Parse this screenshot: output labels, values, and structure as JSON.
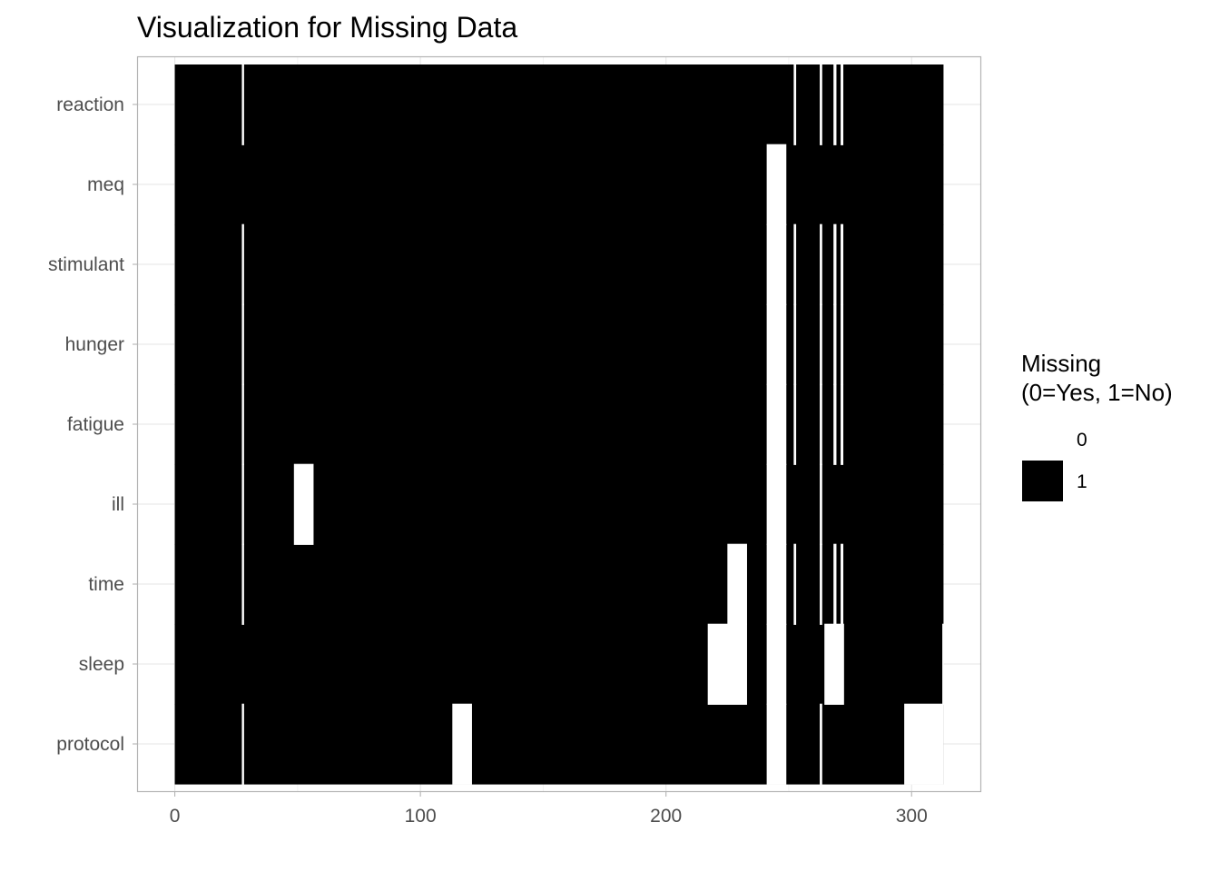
{
  "chart_data": {
    "type": "heatmap",
    "title": "Visualization for Missing Data",
    "xlabel": "",
    "ylabel": "",
    "xlim": [
      -15,
      328
    ],
    "x_ticks": [
      0,
      100,
      200,
      300
    ],
    "x_tick_labels": [
      "0",
      "100",
      "200",
      "300"
    ],
    "x_range": [
      0,
      313
    ],
    "rows": [
      "reaction",
      "meq",
      "stimulant",
      "hunger",
      "fatigue",
      "ill",
      "time",
      "sleep",
      "protocol"
    ],
    "grid": true,
    "legend": {
      "title_lines": [
        "Missing",
        "(0=Yes, 1=No)"
      ],
      "position": "right",
      "entries": [
        {
          "label": "0",
          "color": "#ffffff"
        },
        {
          "label": "1",
          "color": "#000000"
        }
      ]
    },
    "colors": {
      "missing": "#ffffff",
      "present": "#000000"
    },
    "missing_segments": [
      {
        "row": "reaction",
        "x0": 27.3,
        "x1": 28.2
      },
      {
        "row": "reaction",
        "x0": 252,
        "x1": 253
      },
      {
        "row": "reaction",
        "x0": 262.6,
        "x1": 263.6
      },
      {
        "row": "reaction",
        "x0": 268.2,
        "x1": 269.4
      },
      {
        "row": "reaction",
        "x0": 271.1,
        "x1": 272.2
      },
      {
        "row": "meq",
        "x0": 241,
        "x1": 249
      },
      {
        "row": "stimulant",
        "x0": 27.3,
        "x1": 28.2
      },
      {
        "row": "stimulant",
        "x0": 241,
        "x1": 249
      },
      {
        "row": "stimulant",
        "x0": 252,
        "x1": 253
      },
      {
        "row": "stimulant",
        "x0": 262.6,
        "x1": 263.6
      },
      {
        "row": "stimulant",
        "x0": 268.2,
        "x1": 269.4
      },
      {
        "row": "stimulant",
        "x0": 271.1,
        "x1": 272.2
      },
      {
        "row": "hunger",
        "x0": 27.3,
        "x1": 28.2
      },
      {
        "row": "hunger",
        "x0": 241,
        "x1": 249
      },
      {
        "row": "hunger",
        "x0": 252,
        "x1": 253
      },
      {
        "row": "hunger",
        "x0": 262.6,
        "x1": 263.6
      },
      {
        "row": "hunger",
        "x0": 268.2,
        "x1": 269.4
      },
      {
        "row": "hunger",
        "x0": 271.1,
        "x1": 272.2
      },
      {
        "row": "fatigue",
        "x0": 27.3,
        "x1": 28.2
      },
      {
        "row": "fatigue",
        "x0": 241,
        "x1": 249
      },
      {
        "row": "fatigue",
        "x0": 252,
        "x1": 253
      },
      {
        "row": "fatigue",
        "x0": 262.6,
        "x1": 263.6
      },
      {
        "row": "fatigue",
        "x0": 268.2,
        "x1": 269.4
      },
      {
        "row": "fatigue",
        "x0": 271.1,
        "x1": 272.2
      },
      {
        "row": "ill",
        "x0": 27.3,
        "x1": 28.2
      },
      {
        "row": "ill",
        "x0": 48.5,
        "x1": 56.5
      },
      {
        "row": "ill",
        "x0": 241,
        "x1": 249
      },
      {
        "row": "ill",
        "x0": 262.6,
        "x1": 263.6
      },
      {
        "row": "time",
        "x0": 27.3,
        "x1": 28.2
      },
      {
        "row": "time",
        "x0": 225,
        "x1": 233
      },
      {
        "row": "time",
        "x0": 241,
        "x1": 249
      },
      {
        "row": "time",
        "x0": 252,
        "x1": 253
      },
      {
        "row": "time",
        "x0": 262.6,
        "x1": 263.6
      },
      {
        "row": "time",
        "x0": 268.2,
        "x1": 269.4
      },
      {
        "row": "time",
        "x0": 271.1,
        "x1": 272.2
      },
      {
        "row": "sleep",
        "x0": 217,
        "x1": 233
      },
      {
        "row": "sleep",
        "x0": 241,
        "x1": 249
      },
      {
        "row": "sleep",
        "x0": 264.5,
        "x1": 272.5
      },
      {
        "row": "sleep",
        "x0": 312.5,
        "x1": 313
      },
      {
        "row": "protocol",
        "x0": 27.3,
        "x1": 28.2
      },
      {
        "row": "protocol",
        "x0": 113,
        "x1": 121
      },
      {
        "row": "protocol",
        "x0": 241,
        "x1": 249
      },
      {
        "row": "protocol",
        "x0": 262.6,
        "x1": 263.6
      },
      {
        "row": "protocol",
        "x0": 297,
        "x1": 313
      }
    ]
  }
}
